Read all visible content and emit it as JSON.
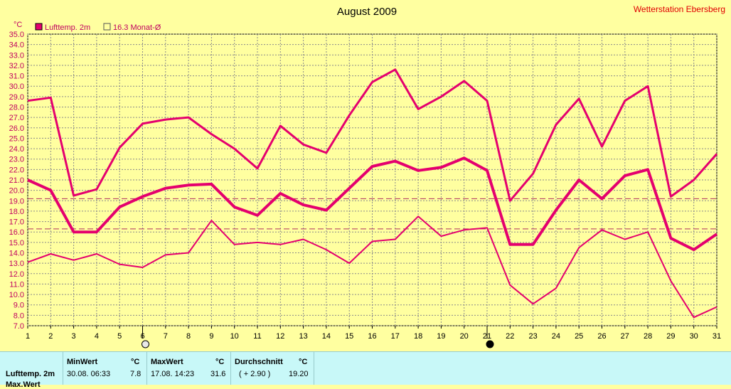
{
  "title": "August 2009",
  "station": "Wetterstation Ebersberg",
  "legend": {
    "series_label": "Lufttemp. 2m",
    "avg_label": "16.3 Monat-Ø",
    "series_color": "#e4006e"
  },
  "chart_data": {
    "type": "line",
    "title": "August 2009",
    "ylabel": "°C",
    "xlabel": "",
    "x": [
      1,
      2,
      3,
      4,
      5,
      6,
      7,
      8,
      9,
      10,
      11,
      12,
      13,
      14,
      15,
      16,
      17,
      18,
      19,
      20,
      21,
      22,
      23,
      24,
      25,
      26,
      27,
      28,
      29,
      30,
      31
    ],
    "ylim": [
      7.0,
      35.0
    ],
    "yticks": [
      "35.0",
      "34.0",
      "33.0",
      "32.0",
      "31.0",
      "30.0",
      "29.0",
      "28.0",
      "27.0",
      "26.0",
      "25.0",
      "24.0",
      "23.0",
      "22.0",
      "21.0",
      "20.0",
      "19.0",
      "18.0",
      "17.0",
      "16.0",
      "15.0",
      "14.0",
      "13.0",
      "12.0",
      "11.0",
      "10.0",
      "9.0",
      "8.0",
      "7.0"
    ],
    "grid": true,
    "series": [
      {
        "name": "",
        "values": [
          28.6,
          28.9,
          19.5,
          20.1,
          24.1,
          26.4,
          26.8,
          27.0,
          25.4,
          24.0,
          22.1,
          26.2,
          24.4,
          23.6,
          27.2,
          30.4,
          31.6,
          27.8,
          29.0,
          30.5,
          28.6,
          19.0,
          21.6,
          26.3,
          28.8,
          24.2,
          28.6,
          30.0,
          19.4,
          21.0,
          23.5
        ],
        "color": "#e4006e",
        "width": 3
      },
      {
        "name": "",
        "values": [
          21.0,
          20.0,
          16.0,
          16.0,
          18.4,
          19.4,
          20.2,
          20.5,
          20.6,
          18.4,
          17.6,
          19.7,
          18.6,
          18.1,
          20.2,
          22.3,
          22.8,
          21.9,
          22.2,
          23.1,
          21.9,
          14.8,
          14.8,
          18.1,
          21.0,
          19.2,
          21.4,
          22.0,
          15.4,
          14.3,
          15.8
        ],
        "color": "#e4006e",
        "width": 4
      },
      {
        "name": "",
        "values": [
          13.1,
          13.9,
          13.3,
          13.9,
          12.9,
          12.6,
          13.8,
          14.0,
          17.1,
          14.8,
          15.0,
          14.8,
          15.3,
          14.3,
          13.0,
          15.1,
          15.3,
          17.5,
          15.6,
          16.2,
          16.4,
          10.9,
          9.1,
          10.6,
          14.5,
          16.2,
          15.3,
          16.0,
          11.3,
          7.8,
          8.8
        ],
        "color": "#e4006e",
        "width": 2
      }
    ],
    "reference_lines": [
      {
        "value": 19.2,
        "color": "#b03060",
        "style": "dashed"
      },
      {
        "value": 16.3,
        "color": "#b03060",
        "style": "dashed"
      }
    ],
    "moon_markers": [
      {
        "day": 6,
        "phase": "full"
      },
      {
        "day": 21,
        "phase": "new"
      }
    ]
  },
  "stats": {
    "row_label": "Lufttemp. 2m",
    "min_header": "MinWert",
    "min_unit": "°C",
    "min_time": "30.08.  06:33",
    "min_value": "7.8",
    "max_header": "MaxWert",
    "max_unit": "°C",
    "max_time": "17.08.  14:23",
    "max_value": "31.6",
    "avg_header": "Durchschnitt",
    "avg_unit": "°C",
    "avg_delta": "( + 2.90 )",
    "avg_value": "19.20",
    "row2_label": "Max.Wert"
  }
}
